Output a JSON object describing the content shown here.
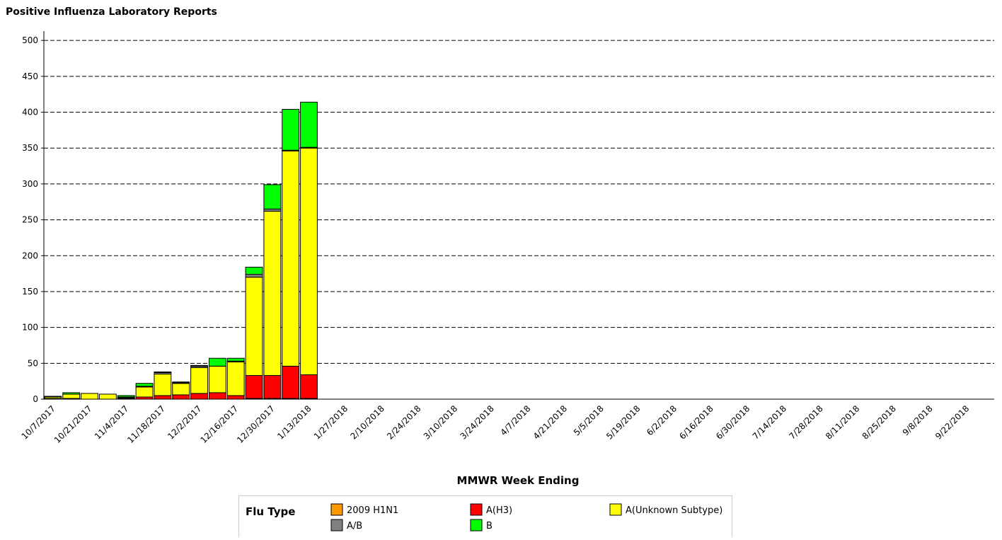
{
  "chart_data": {
    "type": "stacked_bar",
    "title": "Positive Influenza Laboratory Reports",
    "x_label": "MMWR Week Ending",
    "legend_title": "Flu Type",
    "categories": [
      "10/7/2017",
      null,
      "10/21/2017",
      null,
      "11/4/2017",
      null,
      "11/18/2017",
      null,
      "12/2/2017",
      null,
      "12/16/2017",
      null,
      "12/30/2017",
      null,
      "1/13/2018",
      null,
      "1/27/2018",
      null,
      "2/10/2018",
      null,
      "2/24/2018",
      null,
      "3/10/2018",
      null,
      "3/24/2018",
      null,
      "4/7/2018",
      null,
      "4/21/2018",
      null,
      "5/5/2018",
      null,
      "5/19/2018",
      null,
      "6/2/2018",
      null,
      "6/16/2018",
      null,
      "6/30/2018",
      null,
      "7/14/2018",
      null,
      "7/28/2018",
      null,
      "8/11/2018",
      null,
      "8/25/2018",
      null,
      "9/8/2018",
      null,
      "9/22/2018",
      null
    ],
    "series": [
      {
        "name": "2009 H1N1",
        "color": "#ff9900",
        "values": [
          0,
          0,
          0,
          0,
          0,
          0,
          0,
          0,
          0,
          0,
          0,
          1,
          1,
          1,
          1,
          null,
          null,
          null,
          null,
          null,
          null,
          null,
          null,
          null,
          null,
          null,
          null,
          null,
          null,
          null,
          null,
          null,
          null,
          null,
          null,
          null,
          null,
          null,
          null,
          null,
          null,
          null,
          null,
          null,
          null,
          null,
          null,
          null,
          null,
          null,
          null,
          null
        ]
      },
      {
        "name": "A(H3)",
        "color": "#ff0000",
        "values": [
          1,
          1,
          0,
          0,
          1,
          3,
          5,
          6,
          8,
          9,
          5,
          32,
          32,
          45,
          33,
          null,
          null,
          null,
          null,
          null,
          null,
          null,
          null,
          null,
          null,
          null,
          null,
          null,
          null,
          null,
          null,
          null,
          null,
          null,
          null,
          null,
          null,
          null,
          null,
          null,
          null,
          null,
          null,
          null,
          null,
          null,
          null,
          null,
          null,
          null,
          null,
          null
        ]
      },
      {
        "name": "A(Unknown Subtype)",
        "color": "#ffff00",
        "values": [
          2,
          6,
          8,
          7,
          1,
          14,
          30,
          16,
          36,
          37,
          47,
          137,
          229,
          300,
          316,
          null,
          null,
          null,
          null,
          null,
          null,
          null,
          null,
          null,
          null,
          null,
          null,
          null,
          null,
          null,
          null,
          null,
          null,
          null,
          null,
          null,
          null,
          null,
          null,
          null,
          null,
          null,
          null,
          null,
          null,
          null,
          null,
          null,
          null,
          null,
          null,
          null
        ]
      },
      {
        "name": "A/B",
        "color": "#808080",
        "values": [
          0,
          0,
          0,
          0,
          1,
          1,
          2,
          1,
          2,
          0,
          1,
          4,
          3,
          1,
          1,
          null,
          null,
          null,
          null,
          null,
          null,
          null,
          null,
          null,
          null,
          null,
          null,
          null,
          null,
          null,
          null,
          null,
          null,
          null,
          null,
          null,
          null,
          null,
          null,
          null,
          null,
          null,
          null,
          null,
          null,
          null,
          null,
          null,
          null,
          null,
          null,
          null
        ]
      },
      {
        "name": "B",
        "color": "#00ff00",
        "values": [
          1,
          2,
          0,
          0,
          2,
          4,
          1,
          1,
          1,
          11,
          4,
          10,
          34,
          57,
          63,
          null,
          null,
          null,
          null,
          null,
          null,
          null,
          null,
          null,
          null,
          null,
          null,
          null,
          null,
          null,
          null,
          null,
          null,
          null,
          null,
          null,
          null,
          null,
          null,
          null,
          null,
          null,
          null,
          null,
          null,
          null,
          null,
          null,
          null,
          null,
          null,
          null
        ]
      }
    ],
    "ylim": [
      0,
      510
    ],
    "yticks": [
      0,
      50,
      100,
      150,
      200,
      250,
      300,
      350,
      400,
      450,
      500
    ],
    "grid": true
  }
}
